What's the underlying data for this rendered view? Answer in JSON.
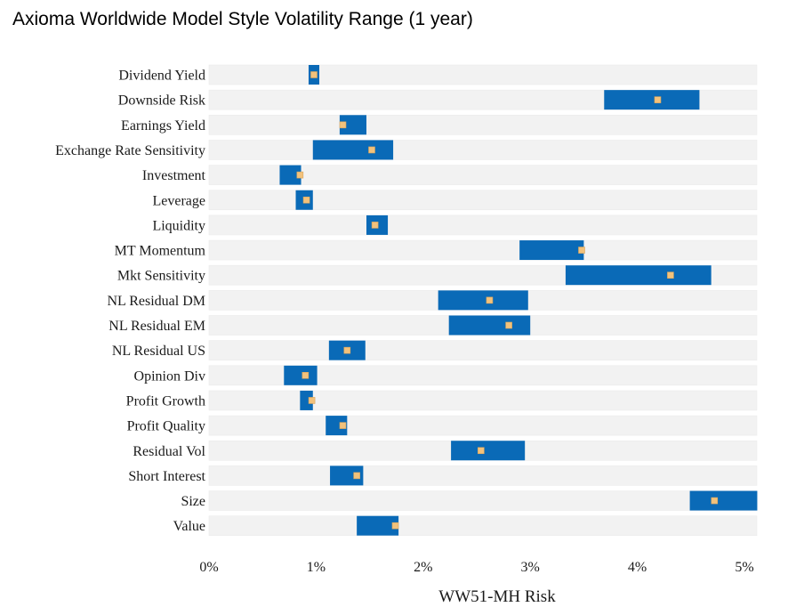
{
  "chart_data": {
    "type": "bar",
    "subtype": "floating-range-with-marker",
    "title": "Axioma Worldwide Model Style Volatility Range (1 year)",
    "xlabel": "WW51-MH Risk",
    "ylabel": "",
    "xlim": [
      0,
      5.15
    ],
    "x_ticks": [
      {
        "value": 0,
        "label": "0%"
      },
      {
        "value": 1,
        "label": "1%"
      },
      {
        "value": 2,
        "label": "2%"
      },
      {
        "value": 3,
        "label": "3%"
      },
      {
        "value": 4,
        "label": "4%"
      },
      {
        "value": 5,
        "label": "5%"
      }
    ],
    "grid": false,
    "legend": "none",
    "colors": {
      "range": "#0a6ab7",
      "marker": "#f2c27c",
      "background_band": "#f2f2f2"
    },
    "categories": [
      "Dividend Yield",
      "Downside Risk",
      "Earnings Yield",
      "Exchange Rate Sensitivity",
      "Investment",
      "Leverage",
      "Liquidity",
      "MT Momentum",
      "Mkt Sensitivity",
      "NL Residual DM",
      "NL Residual EM",
      "NL Residual US",
      "Opinion Div",
      "Profit Growth",
      "Profit Quality",
      "Residual Vol",
      "Short Interest",
      "Size",
      "Value"
    ],
    "series": [
      {
        "values": [
          {
            "min": 0.93,
            "max": 1.03
          },
          {
            "min": 3.69,
            "max": 4.58
          },
          {
            "min": 1.22,
            "max": 1.47
          },
          {
            "min": 0.97,
            "max": 1.72
          },
          {
            "min": 0.66,
            "max": 0.86
          },
          {
            "min": 0.81,
            "max": 0.97
          },
          {
            "min": 1.47,
            "max": 1.67
          },
          {
            "min": 2.9,
            "max": 3.5
          },
          {
            "min": 3.33,
            "max": 4.69
          },
          {
            "min": 2.14,
            "max": 2.98
          },
          {
            "min": 2.24,
            "max": 3.0
          },
          {
            "min": 1.12,
            "max": 1.46
          },
          {
            "min": 0.7,
            "max": 1.01
          },
          {
            "min": 0.85,
            "max": 0.97
          },
          {
            "min": 1.09,
            "max": 1.29
          },
          {
            "min": 2.26,
            "max": 2.95
          },
          {
            "min": 1.13,
            "max": 1.44
          },
          {
            "min": 4.49,
            "max": 5.12
          },
          {
            "min": 1.38,
            "max": 1.77
          }
        ]
      },
      {
        "values": [
          0.98,
          4.19,
          1.25,
          1.52,
          0.85,
          0.91,
          1.55,
          3.48,
          4.31,
          2.62,
          2.8,
          1.29,
          0.9,
          0.96,
          1.25,
          2.54,
          1.38,
          4.72,
          1.74
        ]
      }
    ]
  }
}
